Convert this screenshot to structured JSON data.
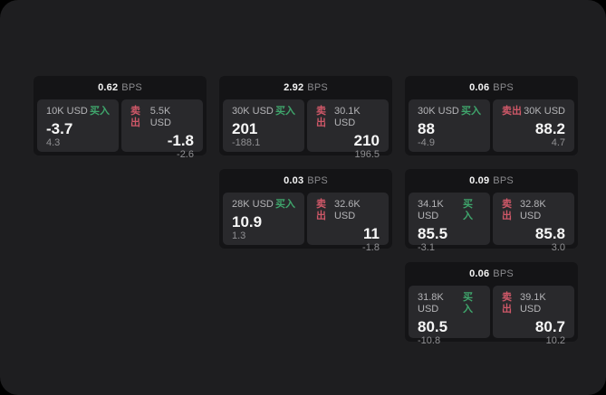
{
  "colors": {
    "buy-color": "#3fa56c",
    "sell-color": "#cf5868"
  },
  "labels": {
    "bps": "BPS",
    "buy": "买入",
    "sell": "卖出"
  },
  "cards": [
    {
      "bps": "0.62",
      "buy": {
        "size": "10K USD",
        "price": "-3.7",
        "delta": "4.3"
      },
      "sell": {
        "size": "5.5K USD",
        "price": "-1.8",
        "delta": "-2.6"
      }
    },
    {
      "bps": "2.92",
      "buy": {
        "size": "30K USD",
        "price": "201",
        "delta": "-188.1"
      },
      "sell": {
        "size": "30.1K USD",
        "price": "210",
        "delta": "196.5"
      }
    },
    {
      "bps": "0.06",
      "buy": {
        "size": "30K USD",
        "price": "88",
        "delta": "-4.9"
      },
      "sell": {
        "size": "30K USD",
        "price": "88.2",
        "delta": "4.7"
      }
    },
    {
      "bps": "0.03",
      "buy": {
        "size": "28K USD",
        "price": "10.9",
        "delta": "1.3"
      },
      "sell": {
        "size": "32.6K USD",
        "price": "11",
        "delta": "-1.8"
      }
    },
    {
      "bps": "0.09",
      "buy": {
        "size": "34.1K USD",
        "price": "85.5",
        "delta": "-3.1"
      },
      "sell": {
        "size": "32.8K USD",
        "price": "85.8",
        "delta": "3.0"
      }
    },
    {
      "bps": "0.06",
      "buy": {
        "size": "31.8K USD",
        "price": "80.5",
        "delta": "-10.8"
      },
      "sell": {
        "size": "39.1K USD",
        "price": "80.7",
        "delta": "10.2"
      }
    }
  ]
}
